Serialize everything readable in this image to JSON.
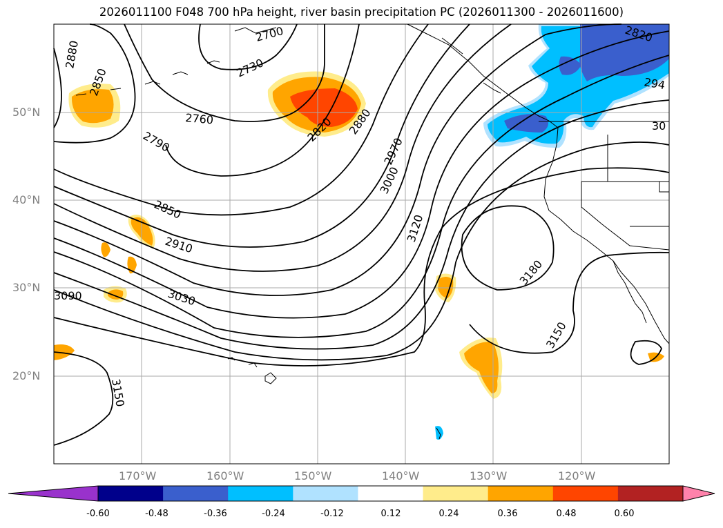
{
  "title": "2026011100 F048 700 hPa height, river basin precipitation PC (2026011300 - 2026011600)",
  "map": {
    "projection": "Mercator",
    "extent_lon": [
      -180,
      -110
    ],
    "extent_lat": [
      10,
      60
    ],
    "gridlines": true,
    "lat_labels": [
      "50°N",
      "40°N",
      "30°N",
      "20°N"
    ],
    "lon_labels": [
      "170°W",
      "160°W",
      "150°W",
      "140°W",
      "130°W",
      "120°W"
    ],
    "contour_labels": [
      "2880",
      "2850",
      "2760",
      "2790",
      "2850",
      "2910",
      "3030",
      "3090",
      "3150",
      "2730",
      "2700",
      "2820",
      "2880",
      "2970",
      "3000",
      "3120",
      "3180",
      "3150",
      "2820",
      "294",
      "30"
    ],
    "contour_color": "#000000",
    "coastline_color": "#000000"
  },
  "colorbar": {
    "ticks": [
      "-0.60",
      "-0.48",
      "-0.36",
      "-0.24",
      "-0.12",
      "0.12",
      "0.24",
      "0.36",
      "0.48",
      "0.60"
    ],
    "colors": [
      "#9932cc",
      "#00008b",
      "#3a5fcd",
      "#00bfff",
      "#b0e2ff",
      "#ffffff",
      "#ffec8b",
      "#ffa500",
      "#ff4500",
      "#b22222",
      "#ff82ab"
    ],
    "extend": "both"
  }
}
